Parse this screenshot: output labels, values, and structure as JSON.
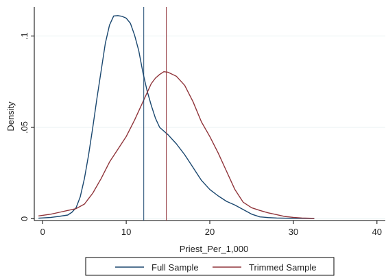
{
  "chart_data": {
    "type": "line",
    "title": "",
    "xlabel": "Priest_Per_1,000",
    "ylabel": "Density",
    "xlim": [
      -1,
      41
    ],
    "ylim": [
      -0.001,
      0.116
    ],
    "x_ticks": [
      0,
      10,
      20,
      30,
      40
    ],
    "x_tick_labels": [
      "0",
      "10",
      "20",
      "30",
      "40"
    ],
    "y_ticks": [
      0,
      0.05,
      0.1
    ],
    "y_tick_labels": [
      "0",
      ".05",
      ".1"
    ],
    "grid": "horizontal",
    "legend_position": "bottom",
    "series": [
      {
        "name": "Full Sample",
        "color": "#1a476f",
        "x": [
          -0.5,
          1,
          2,
          3,
          3.5,
          4,
          4.5,
          5,
          5.5,
          6,
          6.5,
          7,
          7.5,
          8,
          8.5,
          9,
          9.5,
          10,
          10.5,
          11,
          11.5,
          12,
          12.5,
          13,
          13.5,
          14,
          15,
          16,
          17,
          18,
          19,
          20,
          21,
          22,
          23,
          24,
          25,
          26,
          27,
          28,
          30,
          32.5
        ],
        "y": [
          0.0003,
          0.0007,
          0.0013,
          0.002,
          0.0035,
          0.006,
          0.012,
          0.022,
          0.035,
          0.05,
          0.066,
          0.081,
          0.096,
          0.106,
          0.111,
          0.1112,
          0.1108,
          0.1098,
          0.107,
          0.1005,
          0.092,
          0.08,
          0.07,
          0.062,
          0.055,
          0.05,
          0.046,
          0.041,
          0.035,
          0.028,
          0.021,
          0.016,
          0.0125,
          0.0095,
          0.0075,
          0.005,
          0.0025,
          0.001,
          0.0006,
          0.0004,
          0.0002,
          0.0001
        ]
      },
      {
        "name": "Trimmed Sample",
        "color": "#90353b",
        "x": [
          -0.5,
          1,
          2,
          3,
          4,
          5,
          6,
          7,
          8,
          9,
          10,
          11,
          12,
          13,
          13.5,
          14,
          14.5,
          15,
          16,
          17,
          18,
          19,
          20,
          21,
          22,
          23,
          24,
          25,
          26,
          27,
          28,
          29,
          30,
          31,
          32.5
        ],
        "y": [
          0.0015,
          0.0025,
          0.0035,
          0.0045,
          0.0055,
          0.008,
          0.014,
          0.022,
          0.031,
          0.038,
          0.045,
          0.054,
          0.064,
          0.074,
          0.077,
          0.079,
          0.0805,
          0.0802,
          0.078,
          0.073,
          0.064,
          0.053,
          0.045,
          0.036,
          0.026,
          0.016,
          0.009,
          0.006,
          0.0045,
          0.0032,
          0.0022,
          0.0012,
          0.0007,
          0.0004,
          0.0002
        ]
      }
    ],
    "reference_lines": [
      {
        "x": 12.1,
        "color": "#1a476f"
      },
      {
        "x": 14.8,
        "color": "#90353b"
      }
    ]
  }
}
